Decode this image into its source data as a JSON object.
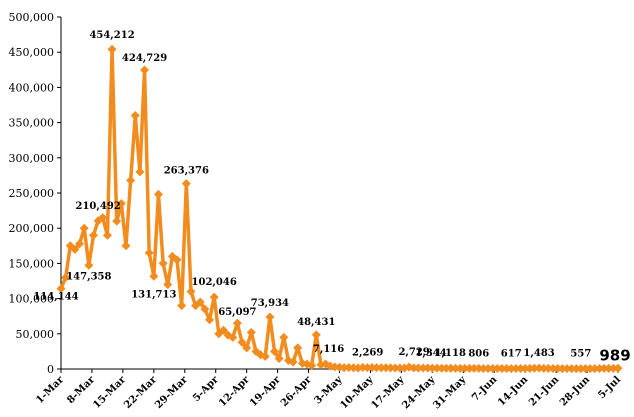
{
  "chart_data": {
    "type": "line",
    "title": "",
    "xlabel": "",
    "ylabel": "",
    "ylim": [
      0,
      500000
    ],
    "yticks": [
      0,
      50000,
      100000,
      150000,
      200000,
      250000,
      300000,
      350000,
      400000,
      450000,
      500000
    ],
    "ytick_labels": [
      "0",
      "50,000",
      "100,000",
      "150,000",
      "200,000",
      "250,000",
      "300,000",
      "350,000",
      "400,000",
      "450,000",
      "500,000"
    ],
    "grid": false,
    "legend": "none",
    "series_color": "#F28C1E",
    "x_start": "1-Mar",
    "x_end": "5-Jul",
    "x_tick_labels": [
      "1-Mar",
      "8-Mar",
      "15-Mar",
      "22-Mar",
      "29-Mar",
      "5-Apr",
      "12-Apr",
      "19-Apr",
      "26-Apr",
      "3-May",
      "10-May",
      "17-May",
      "24-May",
      "31-May",
      "7-Jun",
      "14-Jun",
      "21-Jun",
      "28-Jun",
      "5-Jul"
    ],
    "values": [
      114144,
      130000,
      175000,
      170000,
      178000,
      200000,
      147358,
      190000,
      210492,
      215000,
      190000,
      454212,
      210000,
      235000,
      175000,
      268000,
      360000,
      280000,
      424729,
      165000,
      131713,
      248000,
      150000,
      120000,
      160000,
      155000,
      90000,
      263376,
      110000,
      90000,
      95000,
      85000,
      70000,
      102046,
      50000,
      55000,
      48000,
      45000,
      65097,
      38000,
      30000,
      52000,
      25000,
      20000,
      18000,
      73934,
      25000,
      15000,
      45000,
      12000,
      10000,
      30000,
      8000,
      7000,
      5000,
      48431,
      6000,
      7116,
      4000,
      3000,
      2500,
      2000,
      2200,
      1800,
      1500,
      2269,
      2000,
      2100,
      1900,
      1800,
      1700,
      1600,
      1500,
      1400,
      1500,
      2729,
      1600,
      1500,
      1344,
      1400,
      1300,
      1200,
      1100,
      1118,
      1000,
      950,
      900,
      880,
      850,
      830,
      806,
      780,
      760,
      740,
      720,
      700,
      680,
      617,
      650,
      700,
      750,
      800,
      1000,
      1483,
      900,
      800,
      700,
      650,
      600,
      580,
      570,
      560,
      557,
      550,
      560,
      600,
      700,
      800,
      900,
      950,
      989
    ],
    "data_labels": [
      {
        "index": 0,
        "text": "114,144"
      },
      {
        "index": 6,
        "text": "147,358"
      },
      {
        "index": 8,
        "text": "210,492"
      },
      {
        "index": 11,
        "text": "454,212"
      },
      {
        "index": 18,
        "text": "424,729"
      },
      {
        "index": 20,
        "text": "131,713"
      },
      {
        "index": 27,
        "text": "263,376"
      },
      {
        "index": 33,
        "text": "102,046"
      },
      {
        "index": 38,
        "text": "65,097"
      },
      {
        "index": 45,
        "text": "73,934"
      },
      {
        "index": 55,
        "text": "48,431"
      },
      {
        "index": 57,
        "text": "7,116"
      },
      {
        "index": 65,
        "text": "2,269"
      },
      {
        "index": 75,
        "text": "2,729"
      },
      {
        "index": 78,
        "text": "1,344"
      },
      {
        "index": 83,
        "text": "1,118"
      },
      {
        "index": 90,
        "text": "806"
      },
      {
        "index": 97,
        "text": "617"
      },
      {
        "index": 103,
        "text": "1,483"
      },
      {
        "index": 112,
        "text": "557"
      },
      {
        "index": 120,
        "text": "989"
      }
    ]
  }
}
